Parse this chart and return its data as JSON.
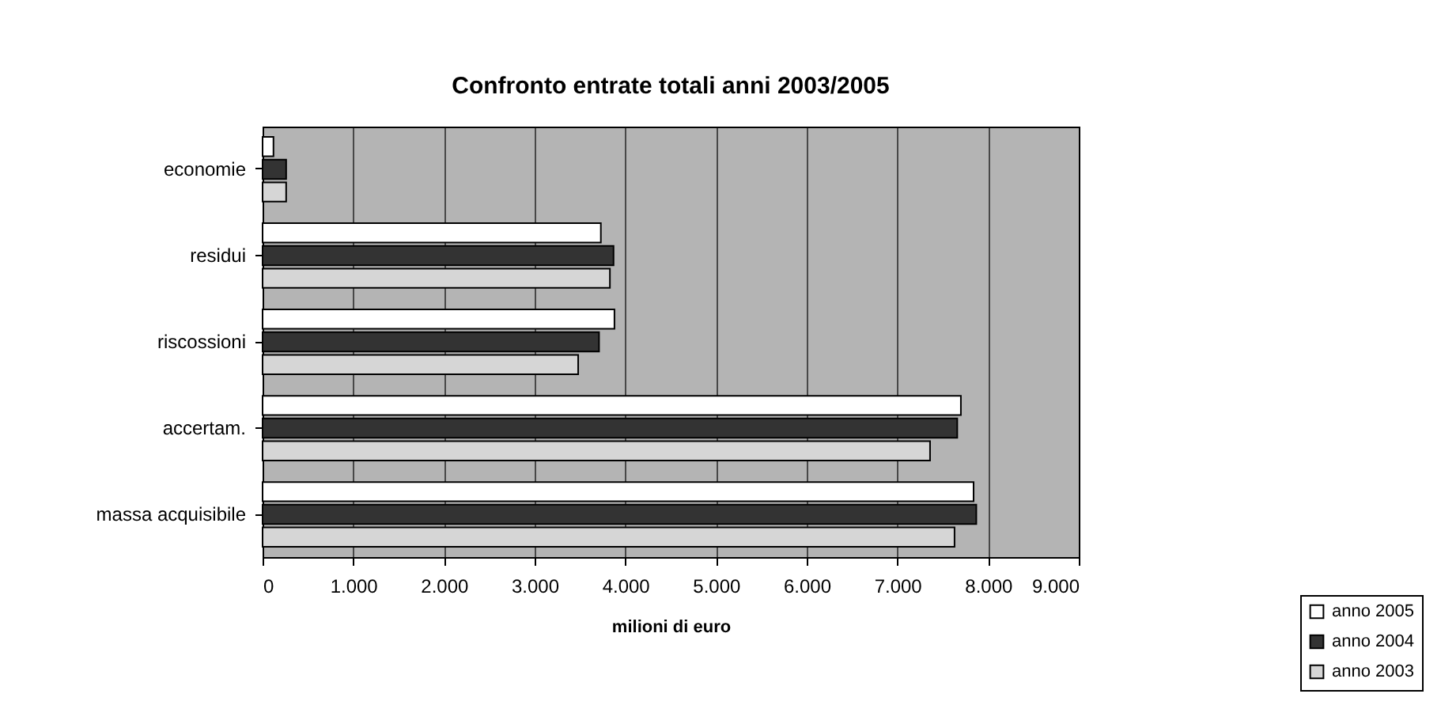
{
  "chart_data": {
    "type": "bar",
    "orientation": "horizontal",
    "title": "Confronto  entrate totali anni 2003/2005",
    "xlabel": "milioni di euro",
    "categories": [
      "economie",
      "residui",
      "riscossioni",
      "accertam.",
      "massa acquisibile"
    ],
    "series": [
      {
        "name": "anno 2005",
        "color": "#ffffff",
        "values": [
          120,
          3730,
          3880,
          7700,
          7840
        ]
      },
      {
        "name": "anno 2004",
        "color": "#333333",
        "values": [
          260,
          3870,
          3710,
          7660,
          7870
        ]
      },
      {
        "name": "anno 2003",
        "color": "#d6d6d6",
        "values": [
          260,
          3830,
          3480,
          7360,
          7630
        ]
      }
    ],
    "xlim": [
      0,
      9000
    ],
    "xticks": [
      0,
      {
        "value": 1000,
        "label": "1.000"
      },
      {
        "value": 2000,
        "label": "2.000"
      },
      {
        "value": 3000,
        "label": "3.000"
      },
      {
        "value": 4000,
        "label": "4.000"
      },
      {
        "value": 5000,
        "label": "5.000"
      },
      {
        "value": 6000,
        "label": "6.000"
      },
      {
        "value": 7000,
        "label": "7.000"
      },
      {
        "value": 8000,
        "label": "8.000"
      },
      {
        "value": 9000,
        "label": "9.000"
      }
    ],
    "grid": "x",
    "legend": "bottom right"
  }
}
